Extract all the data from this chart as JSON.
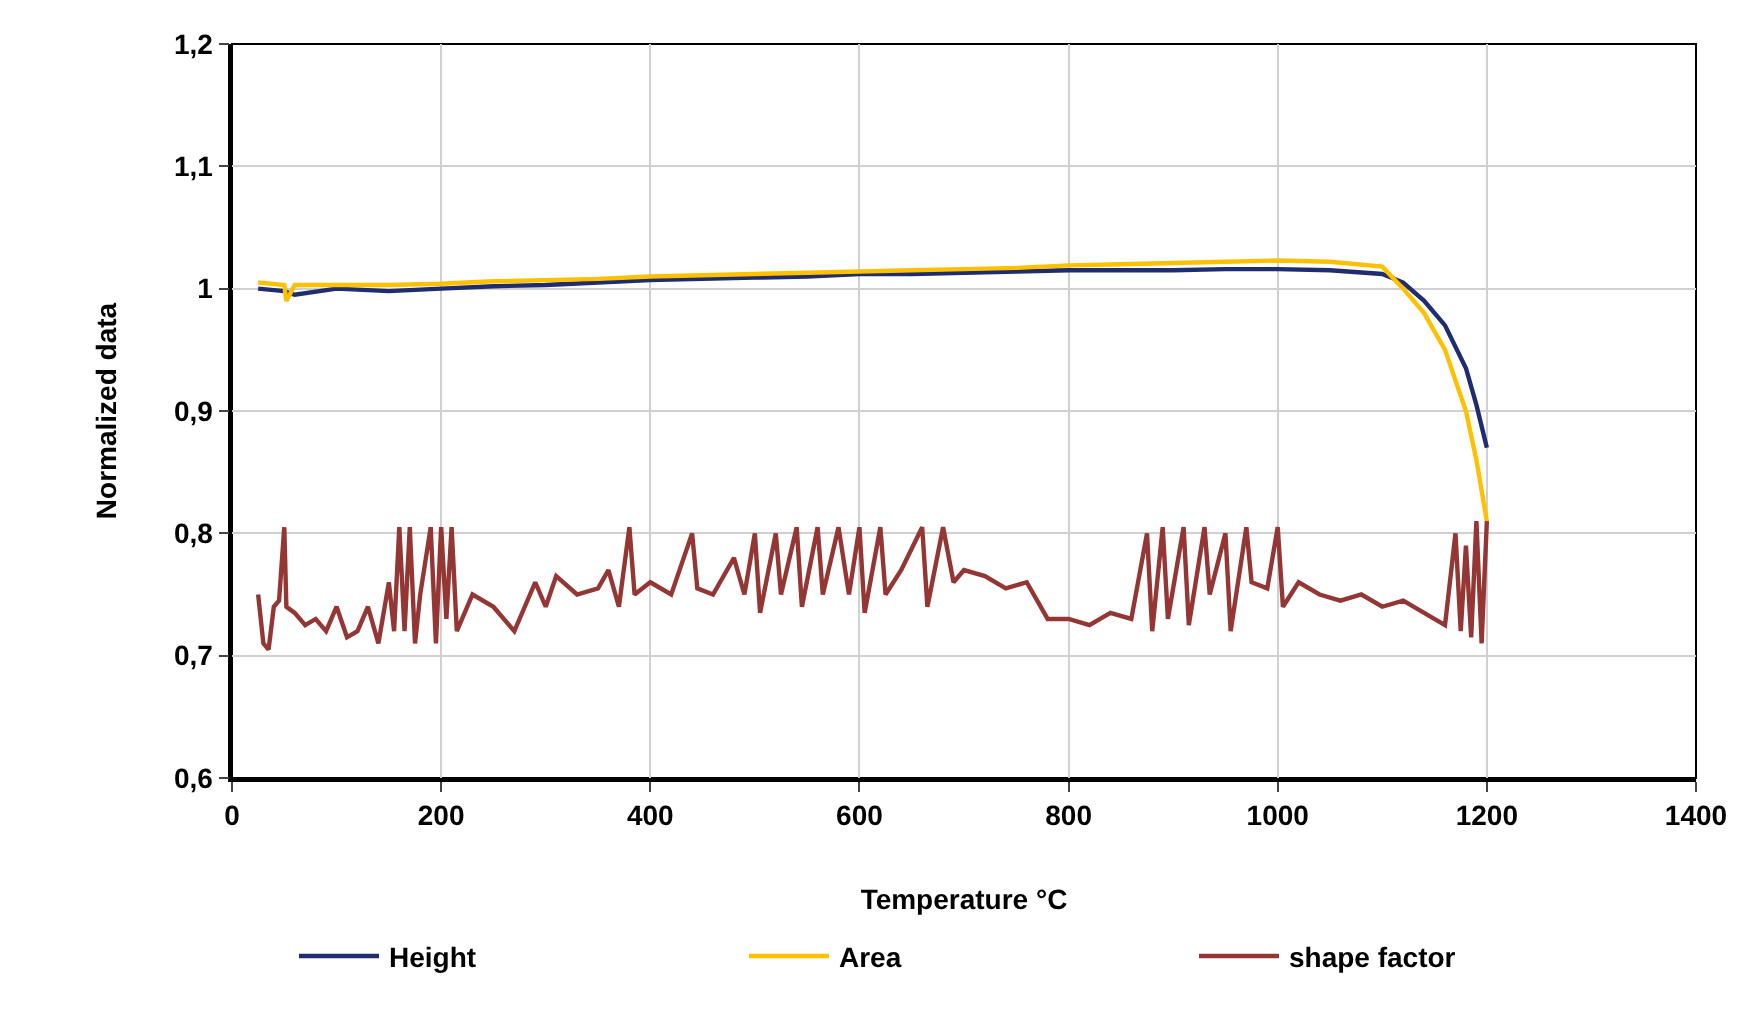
{
  "chart_data": {
    "type": "line",
    "xlabel": "Temperature °C",
    "ylabel": "Normalized data",
    "xlim": [
      0,
      1400
    ],
    "xticks": [
      0,
      200,
      400,
      600,
      800,
      1000,
      1200,
      1400
    ],
    "ylim": [
      0.6,
      1.2
    ],
    "yticks": [
      {
        "value": 0.6,
        "label": "0,6"
      },
      {
        "value": 0.7,
        "label": "0,7"
      },
      {
        "value": 0.8,
        "label": "0,8"
      },
      {
        "value": 0.9,
        "label": "0,9"
      },
      1,
      {
        "value": 1.1,
        "label": "1,1"
      },
      {
        "value": 1.2,
        "label": "1,2"
      }
    ],
    "grid": true,
    "legend": "bottom",
    "marker": "none",
    "line_style": "solid",
    "series": [
      {
        "name": "Height",
        "color": "#1f2d6e",
        "x": [
          25,
          50,
          60,
          100,
          150,
          200,
          250,
          300,
          350,
          400,
          450,
          500,
          550,
          600,
          650,
          700,
          750,
          800,
          850,
          900,
          950,
          1000,
          1050,
          1100,
          1120,
          1140,
          1160,
          1180,
          1190,
          1200
        ],
        "values": [
          1.0,
          0.998,
          0.995,
          1.0,
          0.998,
          1.0,
          1.002,
          1.003,
          1.005,
          1.007,
          1.008,
          1.009,
          1.01,
          1.012,
          1.012,
          1.013,
          1.014,
          1.015,
          1.015,
          1.015,
          1.016,
          1.016,
          1.015,
          1.012,
          1.005,
          0.99,
          0.97,
          0.935,
          0.905,
          0.87
        ]
      },
      {
        "name": "Area",
        "color": "#ffc000",
        "x": [
          25,
          50,
          52,
          60,
          100,
          150,
          200,
          250,
          300,
          350,
          400,
          450,
          500,
          550,
          600,
          650,
          700,
          750,
          800,
          850,
          900,
          950,
          1000,
          1050,
          1100,
          1120,
          1140,
          1160,
          1180,
          1190,
          1200
        ],
        "values": [
          1.005,
          1.003,
          0.99,
          1.003,
          1.003,
          1.003,
          1.004,
          1.006,
          1.007,
          1.008,
          1.01,
          1.011,
          1.012,
          1.013,
          1.014,
          1.015,
          1.016,
          1.017,
          1.019,
          1.02,
          1.021,
          1.022,
          1.023,
          1.022,
          1.018,
          1.0,
          0.98,
          0.95,
          0.9,
          0.86,
          0.81
        ]
      },
      {
        "name": "shape factor",
        "color": "#943634",
        "x": [
          25,
          30,
          35,
          40,
          45,
          50,
          52,
          60,
          70,
          80,
          90,
          100,
          110,
          120,
          130,
          140,
          150,
          155,
          160,
          165,
          170,
          175,
          180,
          190,
          195,
          200,
          205,
          210,
          215,
          230,
          250,
          270,
          290,
          300,
          310,
          330,
          350,
          360,
          370,
          380,
          385,
          400,
          420,
          440,
          445,
          460,
          480,
          490,
          500,
          505,
          520,
          525,
          540,
          545,
          560,
          565,
          580,
          590,
          600,
          605,
          620,
          625,
          640,
          660,
          665,
          680,
          690,
          700,
          720,
          740,
          760,
          780,
          800,
          820,
          840,
          860,
          875,
          880,
          890,
          895,
          910,
          915,
          930,
          935,
          950,
          955,
          970,
          975,
          990,
          1000,
          1005,
          1020,
          1040,
          1060,
          1080,
          1100,
          1120,
          1140,
          1160,
          1170,
          1175,
          1180,
          1185,
          1190,
          1195,
          1200
        ],
        "values": [
          0.75,
          0.71,
          0.705,
          0.74,
          0.745,
          0.805,
          0.74,
          0.735,
          0.725,
          0.73,
          0.72,
          0.74,
          0.715,
          0.72,
          0.74,
          0.71,
          0.76,
          0.72,
          0.805,
          0.72,
          0.805,
          0.71,
          0.75,
          0.805,
          0.71,
          0.805,
          0.73,
          0.805,
          0.72,
          0.75,
          0.74,
          0.72,
          0.76,
          0.74,
          0.765,
          0.75,
          0.755,
          0.77,
          0.74,
          0.805,
          0.75,
          0.76,
          0.75,
          0.8,
          0.755,
          0.75,
          0.78,
          0.75,
          0.8,
          0.735,
          0.8,
          0.75,
          0.805,
          0.74,
          0.805,
          0.75,
          0.805,
          0.75,
          0.805,
          0.735,
          0.805,
          0.75,
          0.77,
          0.805,
          0.74,
          0.805,
          0.76,
          0.77,
          0.765,
          0.755,
          0.76,
          0.73,
          0.73,
          0.725,
          0.735,
          0.73,
          0.8,
          0.72,
          0.805,
          0.73,
          0.805,
          0.725,
          0.805,
          0.75,
          0.8,
          0.72,
          0.805,
          0.76,
          0.755,
          0.805,
          0.74,
          0.76,
          0.75,
          0.745,
          0.75,
          0.74,
          0.745,
          0.735,
          0.725,
          0.8,
          0.72,
          0.79,
          0.715,
          0.81,
          0.71,
          0.81
        ]
      }
    ]
  }
}
